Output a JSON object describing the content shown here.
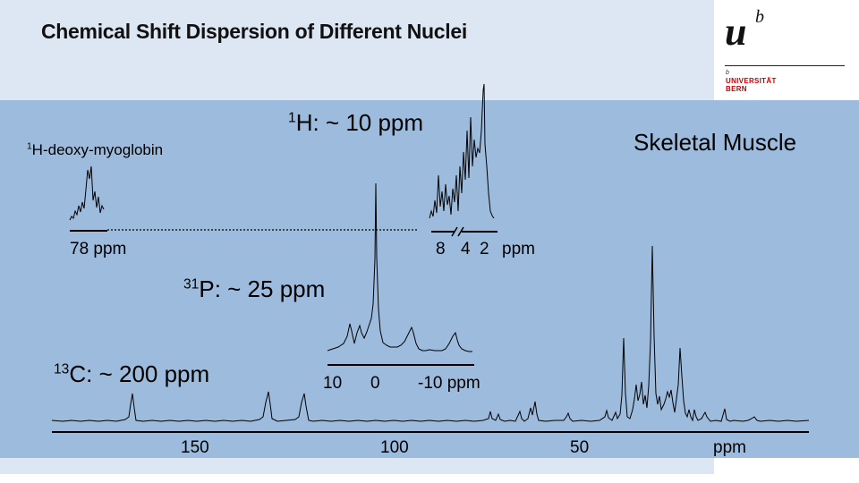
{
  "title": "Chemical Shift Dispersion of Different Nuclei",
  "logo": {
    "mark_letters": "u",
    "mark_superscript": "b",
    "small_mark": "b",
    "university_line1": "UNIVERSITÄT",
    "university_line2": "BERN"
  },
  "tissue_label": "Skeletal Muscle",
  "myoglobin": {
    "superscript": "1",
    "label": "H-deoxy-myoglobin",
    "scale_label": "78 ppm"
  },
  "proton": {
    "superscript": "1",
    "label": "H: ~ 10 ppm",
    "ticks": [
      "8",
      "4",
      "2"
    ],
    "unit": "ppm"
  },
  "phosphorus": {
    "superscript": "31",
    "label": "P: ~ 25 ppm",
    "ticks": [
      "10",
      "0",
      "-10 ppm"
    ]
  },
  "carbon": {
    "superscript": "13",
    "label": "C: ~ 200 ppm",
    "ticks": [
      "150",
      "100",
      "50"
    ],
    "unit": "ppm"
  },
  "colors": {
    "panel": "#9dbbdd",
    "band": "#dde7f3",
    "logo_red": "#cc0000"
  }
}
